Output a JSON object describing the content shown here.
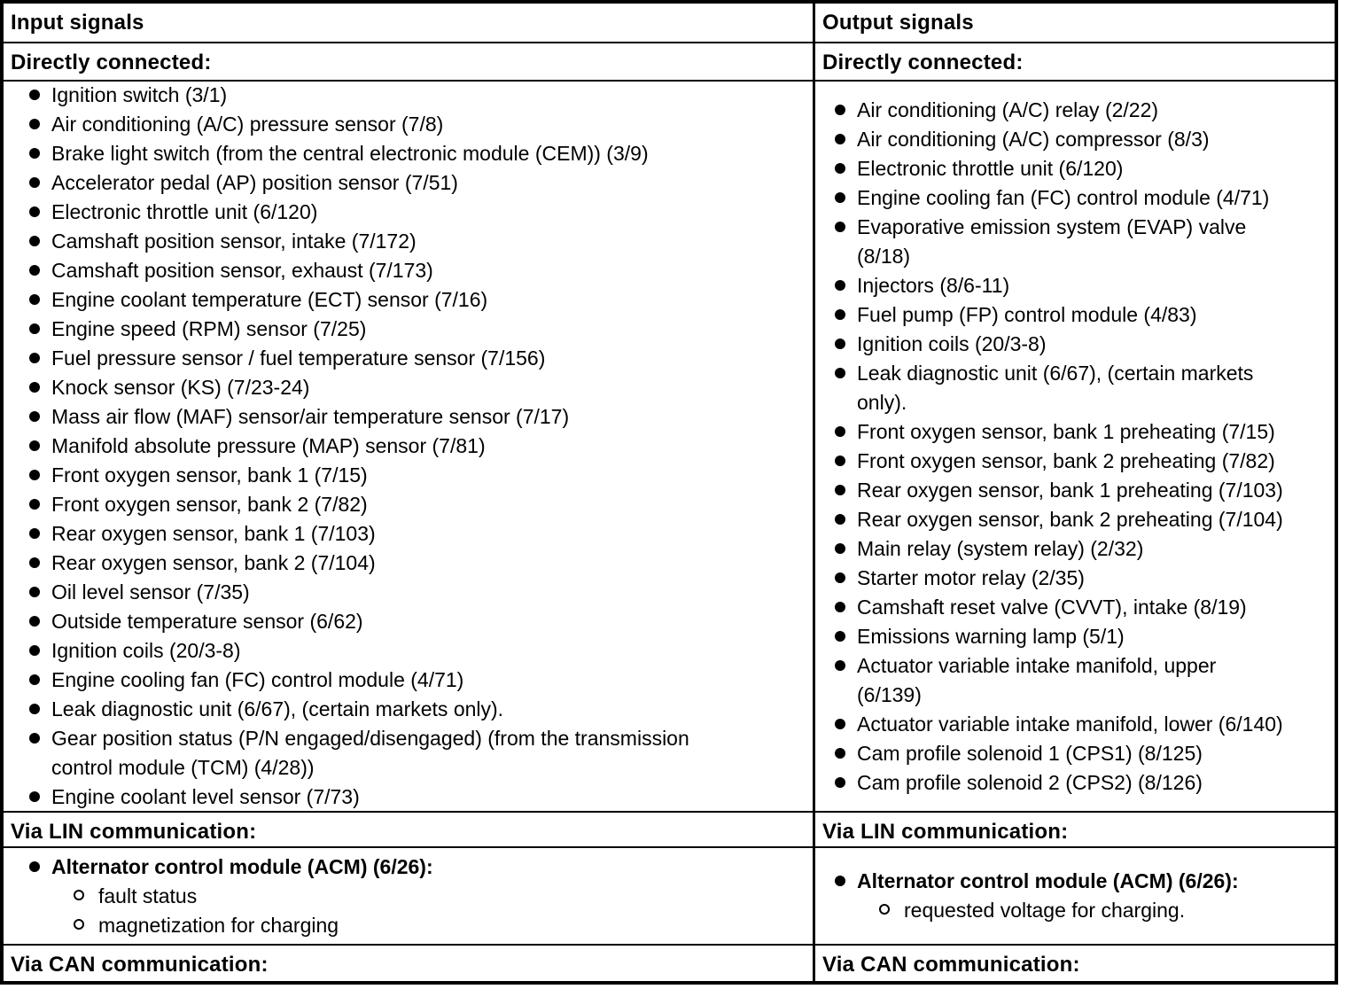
{
  "table": {
    "colors": {
      "border": "#000000",
      "text": "#000000",
      "background": "#ffffff"
    },
    "columns": [
      {
        "header": "Input signals",
        "sections": [
          {
            "title": "Directly connected:",
            "items": [
              {
                "label": "Ignition switch (3/1)"
              },
              {
                "label": "Air conditioning (A/C) pressure sensor (7/8)"
              },
              {
                "label": "Brake light switch (from the central electronic module (CEM)) (3/9)"
              },
              {
                "label": "Accelerator pedal (AP) position sensor (7/51)"
              },
              {
                "label": "Electronic throttle unit (6/120)"
              },
              {
                "label": "Camshaft position sensor, intake (7/172)"
              },
              {
                "label": "Camshaft position sensor, exhaust (7/173)"
              },
              {
                "label": "Engine coolant temperature (ECT) sensor (7/16)"
              },
              {
                "label": "Engine speed (RPM) sensor (7/25)"
              },
              {
                "label": "Fuel pressure sensor / fuel temperature sensor (7/156)"
              },
              {
                "label": "Knock sensor (KS) (7/23-24)"
              },
              {
                "label": "Mass air flow (MAF) sensor/air temperature sensor (7/17)"
              },
              {
                "label": "Manifold absolute pressure (MAP) sensor (7/81)"
              },
              {
                "label": "Front oxygen sensor, bank 1 (7/15)"
              },
              {
                "label": "Front oxygen sensor, bank 2 (7/82)"
              },
              {
                "label": "Rear oxygen sensor, bank 1 (7/103)"
              },
              {
                "label": "Rear oxygen sensor, bank 2 (7/104)"
              },
              {
                "label": "Oil level sensor (7/35)"
              },
              {
                "label": "Outside temperature sensor (6/62)"
              },
              {
                "label": "Ignition coils (20/3-8)"
              },
              {
                "label": "Engine cooling fan (FC) control module (4/71)"
              },
              {
                "label": "Leak diagnostic unit (6/67), (certain markets only)."
              },
              {
                "label": "Gear position status (P/N engaged/disengaged) (from the transmission\ncontrol module (TCM) (4/28))"
              },
              {
                "label": "Engine coolant level sensor (7/73)"
              }
            ]
          },
          {
            "title": "Via LIN communication:",
            "items": [
              {
                "label": "Alternator control module (ACM) (6/26):",
                "bold": true,
                "subitems": [
                  "fault status",
                  "magnetization for charging"
                ]
              }
            ]
          },
          {
            "title": "Via CAN communication:",
            "items": []
          }
        ]
      },
      {
        "header": "Output signals",
        "sections": [
          {
            "title": "Directly connected:",
            "items": [
              {
                "label": "Air conditioning (A/C) relay (2/22)"
              },
              {
                "label": "Air conditioning (A/C) compressor (8/3)"
              },
              {
                "label": "Electronic throttle unit (6/120)"
              },
              {
                "label": "Engine cooling fan (FC) control module (4/71)"
              },
              {
                "label": "Evaporative emission system (EVAP) valve\n(8/18)"
              },
              {
                "label": "Injectors (8/6-11)"
              },
              {
                "label": "Fuel pump (FP) control module (4/83)"
              },
              {
                "label": "Ignition coils (20/3-8)"
              },
              {
                "label": "Leak diagnostic unit (6/67), (certain markets\nonly)."
              },
              {
                "label": "Front oxygen sensor, bank 1 preheating (7/15)"
              },
              {
                "label": "Front oxygen sensor, bank 2 preheating (7/82)"
              },
              {
                "label": "Rear oxygen sensor, bank 1 preheating (7/103)"
              },
              {
                "label": "Rear oxygen sensor, bank 2 preheating (7/104)"
              },
              {
                "label": "Main relay (system relay) (2/32)"
              },
              {
                "label": "Starter motor relay (2/35)"
              },
              {
                "label": "Camshaft reset valve (CVVT), intake (8/19)"
              },
              {
                "label": "Emissions warning lamp (5/1)"
              },
              {
                "label": "Actuator variable intake manifold, upper\n(6/139)"
              },
              {
                "label": "Actuator variable intake manifold, lower (6/140)"
              },
              {
                "label": "Cam profile solenoid 1 (CPS1) (8/125)"
              },
              {
                "label": "Cam profile solenoid 2 (CPS2) (8/126)"
              }
            ]
          },
          {
            "title": "Via LIN communication:",
            "items": [
              {
                "label": "Alternator control module (ACM) (6/26):",
                "bold": true,
                "subitems": [
                  "requested voltage for charging."
                ]
              }
            ]
          },
          {
            "title": "Via CAN communication:",
            "items": []
          }
        ]
      }
    ]
  }
}
